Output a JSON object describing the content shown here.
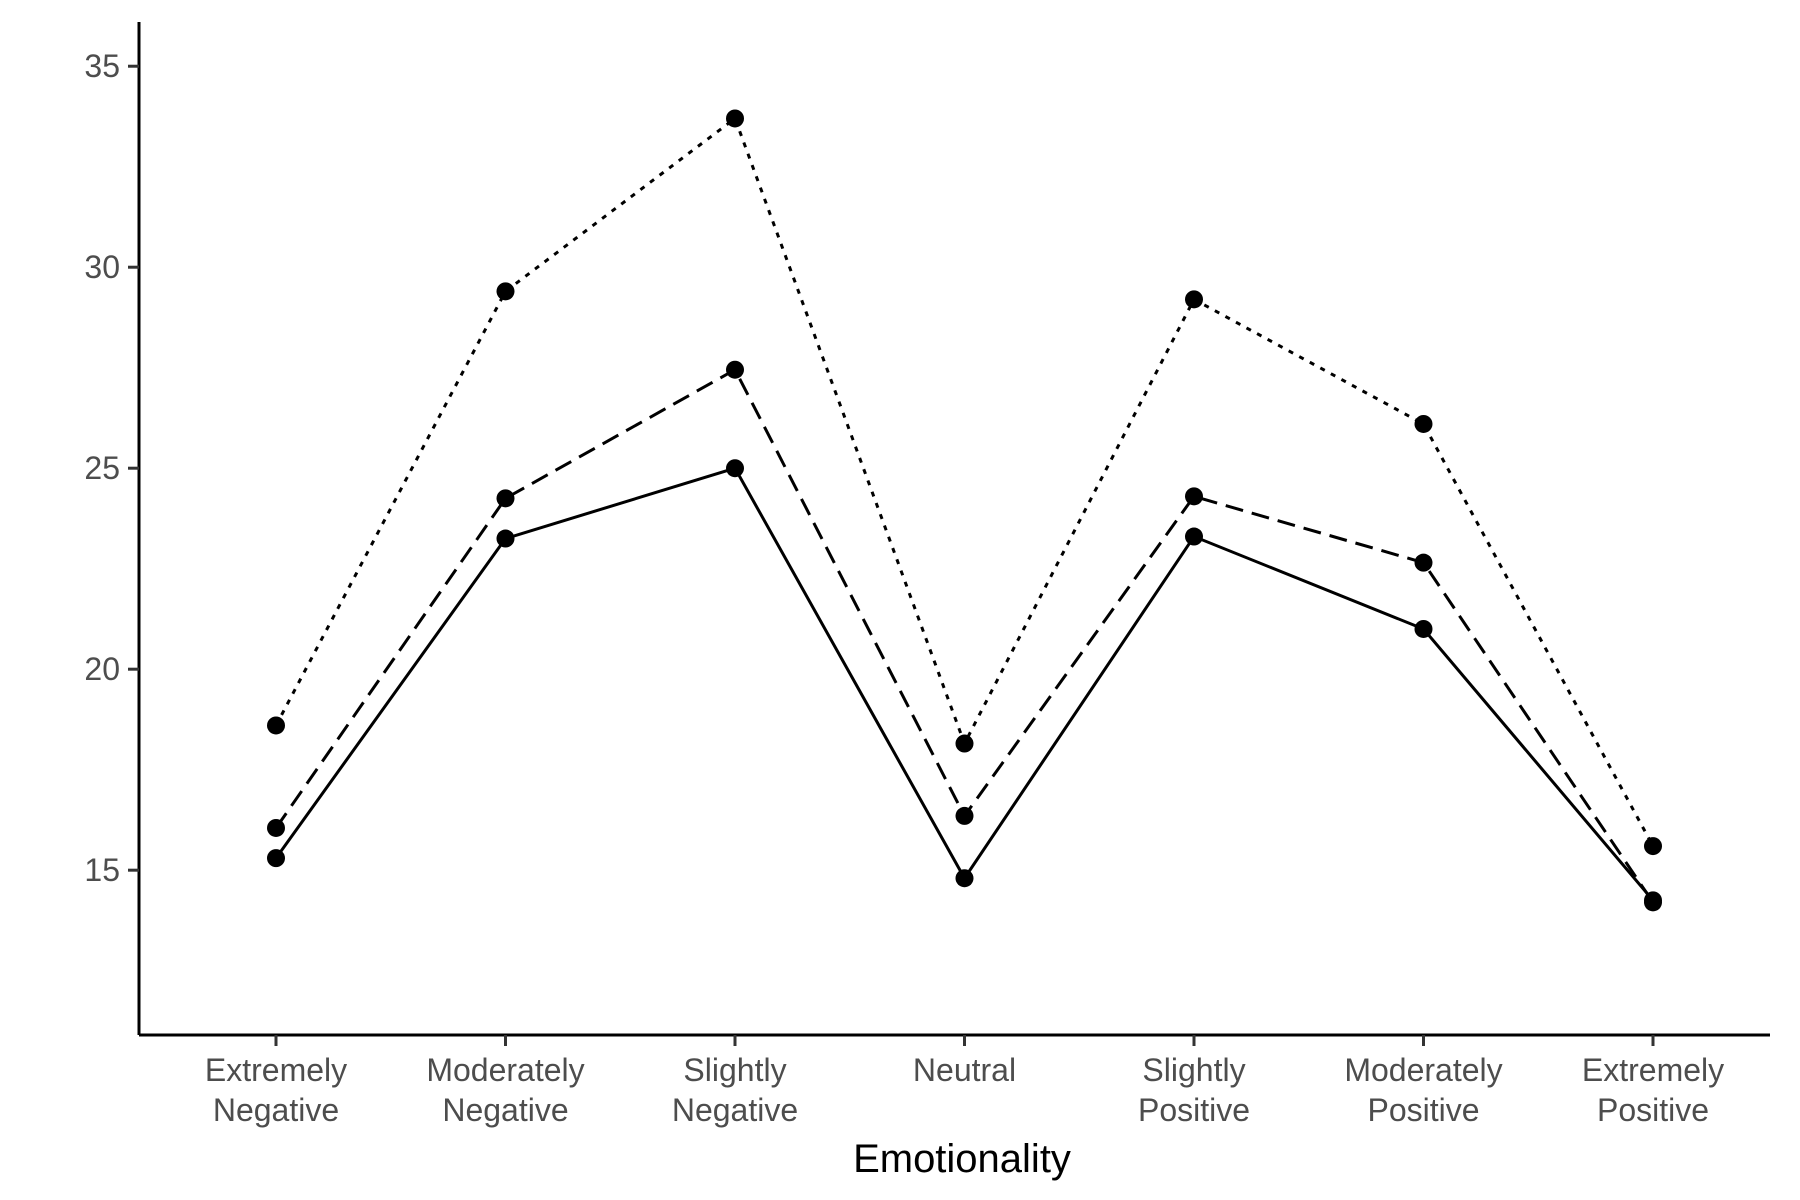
{
  "chart_data": {
    "type": "line",
    "title": "",
    "xlabel": "Emotionality",
    "ylabel": "",
    "categories": [
      [
        "Extremely",
        "Negative"
      ],
      [
        "Moderately",
        "Negative"
      ],
      [
        "Slightly",
        "Negative"
      ],
      [
        "Neutral"
      ],
      [
        "Slightly",
        "Positive"
      ],
      [
        "Moderately",
        "Positive"
      ],
      [
        "Extremely",
        "Positive"
      ]
    ],
    "yticks": [
      15,
      20,
      25,
      30,
      35
    ],
    "ylim": [
      10.9,
      36.1
    ],
    "grid": false,
    "legend": "none",
    "series": [
      {
        "linestyle": "solid",
        "values": [
          15.3,
          23.25,
          25.0,
          14.8,
          23.3,
          21.0,
          14.25
        ]
      },
      {
        "linestyle": "dashed",
        "values": [
          16.05,
          24.25,
          27.45,
          16.35,
          24.3,
          22.65,
          14.2
        ]
      },
      {
        "linestyle": "dotted",
        "values": [
          18.6,
          29.4,
          33.7,
          18.15,
          29.2,
          26.1,
          15.6
        ]
      }
    ]
  }
}
